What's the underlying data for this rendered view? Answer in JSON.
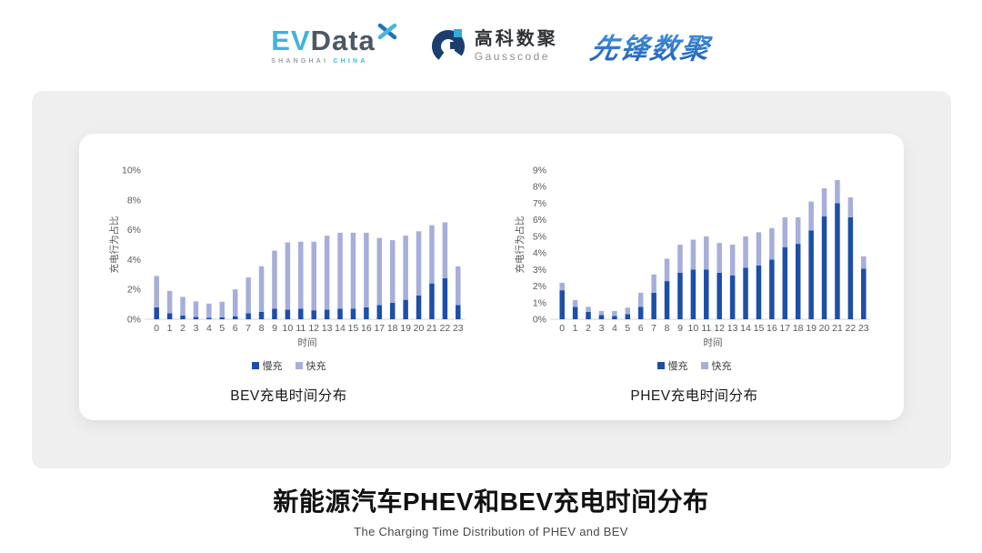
{
  "header": {
    "evdata": {
      "part1": "EV",
      "part2": "Data",
      "sub1": "SHANGHAI",
      "sub2": "CHINA"
    },
    "gausscode": {
      "cn": "高科数聚",
      "en": "Gausscode"
    },
    "xianfeng": {
      "name": "先锋数聚"
    }
  },
  "chart_data": [
    {
      "type": "bar",
      "stacked": true,
      "title": "BEV充电时间分布",
      "xlabel": "时间",
      "ylabel": "充电行为占比",
      "ylim": [
        0,
        10
      ],
      "ytick_step": 2,
      "legend_position": "bottom",
      "grid": false,
      "categories": [
        "0",
        "1",
        "2",
        "3",
        "4",
        "5",
        "6",
        "7",
        "8",
        "9",
        "10",
        "11",
        "12",
        "13",
        "14",
        "15",
        "16",
        "17",
        "18",
        "19",
        "20",
        "21",
        "22",
        "23"
      ],
      "series": [
        {
          "name": "慢充",
          "color": "#1D4EA8",
          "values": [
            0.8,
            0.4,
            0.25,
            0.15,
            0.1,
            0.12,
            0.2,
            0.4,
            0.5,
            0.7,
            0.65,
            0.7,
            0.6,
            0.65,
            0.7,
            0.7,
            0.8,
            0.95,
            1.1,
            1.3,
            1.6,
            2.4,
            2.75,
            0.95
          ]
        },
        {
          "name": "快充",
          "color": "#A6AEDA",
          "values": [
            2.1,
            1.5,
            1.25,
            1.05,
            0.95,
            1.05,
            1.8,
            2.4,
            3.05,
            3.9,
            4.5,
            4.5,
            4.6,
            4.95,
            5.1,
            5.1,
            5.0,
            4.5,
            4.2,
            4.3,
            4.3,
            3.9,
            3.75,
            2.6
          ]
        }
      ]
    },
    {
      "type": "bar",
      "stacked": true,
      "title": "PHEV充电时间分布",
      "xlabel": "时间",
      "ylabel": "充电行为占比",
      "ylim": [
        0,
        9
      ],
      "ytick_step": 1,
      "legend_position": "bottom",
      "grid": false,
      "categories": [
        "0",
        "1",
        "2",
        "3",
        "4",
        "5",
        "6",
        "7",
        "8",
        "9",
        "10",
        "11",
        "12",
        "13",
        "14",
        "15",
        "16",
        "17",
        "18",
        "19",
        "20",
        "21",
        "22",
        "23"
      ],
      "series": [
        {
          "name": "慢充",
          "color": "#1D4EA8",
          "values": [
            1.75,
            0.75,
            0.45,
            0.25,
            0.2,
            0.3,
            0.75,
            1.6,
            2.3,
            2.8,
            3.0,
            3.0,
            2.8,
            2.65,
            3.1,
            3.25,
            3.6,
            4.35,
            4.55,
            5.35,
            6.2,
            7.0,
            6.15,
            3.05
          ]
        },
        {
          "name": "快充",
          "color": "#A6AEDA",
          "values": [
            0.45,
            0.4,
            0.3,
            0.25,
            0.3,
            0.4,
            0.85,
            1.1,
            1.35,
            1.7,
            1.8,
            2.0,
            1.8,
            1.85,
            1.9,
            2.0,
            1.9,
            1.8,
            1.6,
            1.75,
            1.7,
            1.4,
            1.2,
            0.75
          ]
        }
      ]
    }
  ],
  "footer": {
    "title": "新能源汽车PHEV和BEV充电时间分布",
    "subtitle": "The Charging Time Distribution of PHEV and BEV"
  },
  "colors": {
    "slow_bar": "#1D4EA8",
    "fast_bar": "#A6AEDA",
    "axis_text": "#595959",
    "axis_line": "#D6D6D6",
    "panel_bg": "#EFEFF0"
  }
}
